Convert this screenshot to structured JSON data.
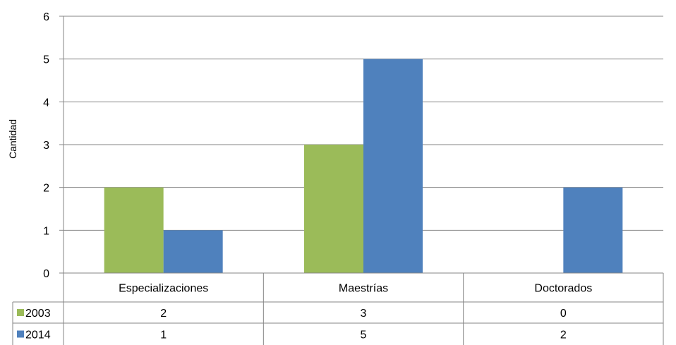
{
  "chart_data": {
    "type": "bar",
    "title": "",
    "xlabel": "",
    "ylabel": "Cantidad",
    "ylim": [
      0,
      6
    ],
    "yticks": [
      0,
      1,
      2,
      3,
      4,
      5,
      6
    ],
    "grid": true,
    "legend": "data-table-left",
    "categories": [
      "Especializaciones",
      "Maestrías",
      "Doctorados"
    ],
    "series": [
      {
        "name": "2003",
        "color": "#9BBB59",
        "values": [
          2,
          3,
          0
        ]
      },
      {
        "name": "2014",
        "color": "#4F81BD",
        "values": [
          1,
          5,
          2
        ]
      }
    ],
    "data_table": true
  }
}
